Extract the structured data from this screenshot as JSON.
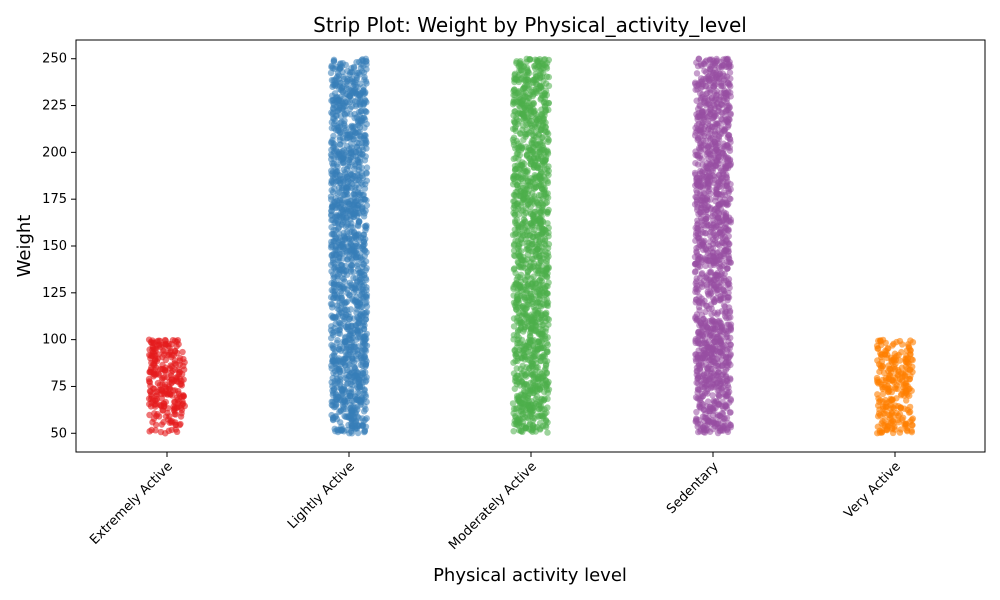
{
  "chart_data": {
    "type": "scatter",
    "subtype": "strip",
    "title": "Strip Plot: Weight by Physical_activity_level",
    "xlabel": "Physical activity level",
    "ylabel": "Weight",
    "categories": [
      "Extremely Active",
      "Lightly Active",
      "Moderately Active",
      "Sedentary",
      "Very Active"
    ],
    "ylim": [
      40,
      260
    ],
    "yticks": [
      50,
      75,
      100,
      125,
      150,
      175,
      200,
      225,
      250
    ],
    "grid": false,
    "legend": "none",
    "series": [
      {
        "category": "Extremely Active",
        "color": "#e41a1c",
        "ymin": 50,
        "ymax": 100,
        "density": "sparse"
      },
      {
        "category": "Lightly Active",
        "color": "#377eb8",
        "ymin": 50,
        "ymax": 250,
        "density": "dense"
      },
      {
        "category": "Moderately Active",
        "color": "#4daf4a",
        "ymin": 50,
        "ymax": 250,
        "density": "dense"
      },
      {
        "category": "Sedentary",
        "color": "#984ea3",
        "ymin": 50,
        "ymax": 250,
        "density": "dense"
      },
      {
        "category": "Very Active",
        "color": "#ff7f00",
        "ymin": 50,
        "ymax": 100,
        "density": "sparse"
      }
    ]
  }
}
